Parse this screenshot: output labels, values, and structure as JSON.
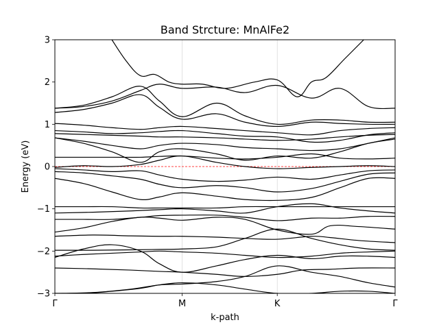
{
  "chart_data": {
    "type": "line",
    "title": "Band Strcture: MnAlFe2",
    "xlabel": "k-path",
    "ylabel": "Energy (eV)",
    "ylim": [
      -3,
      3
    ],
    "xlim": [
      0,
      3.58
    ],
    "xticks": [
      {
        "label": "Γ",
        "x": 0
      },
      {
        "label": "M",
        "x": 1.34
      },
      {
        "label": "K",
        "x": 2.34
      },
      {
        "label": "Γ",
        "x": 3.58
      }
    ],
    "yticks": [
      -3,
      -2,
      -1,
      0,
      1,
      2,
      3
    ],
    "vertical_grid_at_ticks": true,
    "fermi_level": {
      "energy": 0,
      "style": "dashed",
      "color": "#ff0000"
    },
    "band_color": "#000000",
    "bands": [
      {
        "x": [
          0,
          0.3,
          0.6,
          0.9,
          1.1,
          1.34,
          1.7,
          2.0,
          2.34,
          2.7,
          3.0,
          3.3,
          3.58
        ],
        "y": [
          -3.0,
          -3.0,
          -2.95,
          -2.88,
          -2.8,
          -2.75,
          -2.8,
          -2.9,
          -3.0,
          -3.0,
          -2.95,
          -2.95,
          -3.0
        ]
      },
      {
        "x": [
          0,
          0.4,
          0.8,
          1.1,
          1.34,
          1.7,
          2.0,
          2.34,
          2.7,
          3.0,
          3.3,
          3.58
        ],
        "y": [
          -3.0,
          -2.98,
          -2.9,
          -2.8,
          -2.78,
          -2.72,
          -2.6,
          -2.35,
          -2.5,
          -2.6,
          -2.75,
          -2.85
        ]
      },
      {
        "x": [
          0,
          0.4,
          0.8,
          1.1,
          1.34,
          1.7,
          2.0,
          2.34,
          2.6,
          2.9,
          3.2,
          3.58
        ],
        "y": [
          -2.4,
          -2.42,
          -2.45,
          -2.48,
          -2.5,
          -2.55,
          -2.6,
          -2.55,
          -2.45,
          -2.43,
          -2.4,
          -2.4
        ]
      },
      {
        "x": [
          0,
          0.3,
          0.6,
          0.9,
          1.1,
          1.34,
          1.7,
          2.0,
          2.34,
          2.7,
          3.0,
          3.3,
          3.58
        ],
        "y": [
          -2.15,
          -1.95,
          -1.85,
          -2.0,
          -2.3,
          -2.5,
          -2.35,
          -2.2,
          -2.1,
          -2.18,
          -2.12,
          -2.12,
          -2.15
        ]
      },
      {
        "x": [
          0,
          0.3,
          0.6,
          0.9,
          1.1,
          1.34,
          1.7,
          2.0,
          2.34,
          2.7,
          3.0,
          3.3,
          3.58
        ],
        "y": [
          -2.12,
          -2.08,
          -2.05,
          -2.02,
          -2.0,
          -2.02,
          -2.05,
          -2.1,
          -2.15,
          -2.12,
          -2.05,
          -2.02,
          -2.0
        ]
      },
      {
        "x": [
          0,
          0.4,
          0.8,
          1.1,
          1.34,
          1.7,
          2.0,
          2.34,
          2.7,
          3.0,
          3.3,
          3.58
        ],
        "y": [
          -1.98,
          -1.98,
          -1.97,
          -1.96,
          -1.95,
          -1.9,
          -1.7,
          -1.48,
          -1.7,
          -1.85,
          -1.95,
          -1.98
        ]
      },
      {
        "x": [
          0,
          0.4,
          0.8,
          1.1,
          1.34,
          1.7,
          2.0,
          2.34,
          2.7,
          2.9,
          3.2,
          3.58
        ],
        "y": [
          -1.65,
          -1.62,
          -1.64,
          -1.65,
          -1.65,
          -1.67,
          -1.7,
          -1.72,
          -1.65,
          -1.68,
          -1.75,
          -1.8
        ]
      },
      {
        "x": [
          0,
          0.3,
          0.6,
          0.9,
          1.1,
          1.34,
          1.7,
          2.0,
          2.34,
          2.7,
          2.9,
          3.2,
          3.58
        ],
        "y": [
          -1.55,
          -1.45,
          -1.3,
          -1.2,
          -1.22,
          -1.27,
          -1.2,
          -1.25,
          -1.5,
          -1.6,
          -1.4,
          -1.42,
          -1.48
        ]
      },
      {
        "x": [
          0,
          0.3,
          0.6,
          0.9,
          1.1,
          1.34,
          1.7,
          2.0,
          2.34,
          2.7,
          3.0,
          3.3,
          3.58
        ],
        "y": [
          -1.25,
          -1.25,
          -1.25,
          -1.2,
          -1.16,
          -1.15,
          -1.15,
          -1.2,
          -1.28,
          -1.22,
          -1.22,
          -1.18,
          -1.18
        ]
      },
      {
        "x": [
          0,
          0.4,
          0.8,
          1.1,
          1.34,
          1.7,
          2.0,
          2.34,
          2.7,
          3.0,
          3.3,
          3.58
        ],
        "y": [
          -1.1,
          -1.08,
          -1.05,
          -1.02,
          -1.0,
          -1.05,
          -1.1,
          -0.95,
          -0.88,
          -0.98,
          -1.05,
          -1.1
        ]
      },
      {
        "x": [
          0,
          0.3,
          0.6,
          0.9,
          1.1,
          1.34,
          1.7,
          2.0,
          2.34,
          2.7,
          3.0,
          3.3,
          3.58
        ],
        "y": [
          -0.95,
          -0.95,
          -0.95,
          -0.98,
          -0.98,
          -0.98,
          -0.98,
          -0.95,
          -0.95,
          -0.95,
          -0.95,
          -0.95,
          -0.95
        ]
      },
      {
        "x": [
          0,
          0.3,
          0.6,
          0.9,
          1.1,
          1.34,
          1.7,
          2.0,
          2.34,
          2.7,
          3.0,
          3.3,
          3.58
        ],
        "y": [
          -0.28,
          -0.4,
          -0.6,
          -0.78,
          -0.72,
          -0.62,
          -0.7,
          -0.78,
          -0.8,
          -0.73,
          -0.5,
          -0.28,
          -0.28
        ]
      },
      {
        "x": [
          0,
          0.3,
          0.6,
          0.9,
          1.1,
          1.34,
          1.7,
          2.0,
          2.34,
          2.7,
          3.0,
          3.3,
          3.58
        ],
        "y": [
          -0.12,
          -0.15,
          -0.22,
          -0.3,
          -0.42,
          -0.5,
          -0.45,
          -0.5,
          -0.6,
          -0.52,
          -0.35,
          -0.18,
          -0.15
        ]
      },
      {
        "x": [
          0,
          0.3,
          0.6,
          0.9,
          1.1,
          1.34,
          1.7,
          2.0,
          2.34,
          2.7,
          3.0,
          3.3,
          3.58
        ],
        "y": [
          -0.05,
          -0.08,
          -0.12,
          -0.1,
          -0.2,
          -0.3,
          -0.35,
          -0.32,
          -0.25,
          -0.3,
          -0.2,
          -0.1,
          -0.08
        ]
      },
      {
        "x": [
          0,
          0.3,
          0.6,
          0.9,
          1.1,
          1.34,
          1.7,
          2.0,
          2.34,
          2.7,
          3.0,
          3.3,
          3.58
        ],
        "y": [
          -0.02,
          0.02,
          0.0,
          0.05,
          0.15,
          0.25,
          0.1,
          0.0,
          -0.05,
          -0.02,
          0.0,
          0.02,
          0.0
        ]
      },
      {
        "x": [
          0,
          0.3,
          0.6,
          0.9,
          1.1,
          1.34,
          1.7,
          2.0,
          2.34,
          2.7,
          3.0,
          3.3,
          3.58
        ],
        "y": [
          0.22,
          0.22,
          0.22,
          0.22,
          0.24,
          0.25,
          0.2,
          0.18,
          0.22,
          0.3,
          0.2,
          0.18,
          0.2
        ]
      },
      {
        "x": [
          0,
          0.3,
          0.6,
          0.9,
          1.1,
          1.34,
          1.7,
          2.0,
          2.34,
          2.7,
          3.0,
          3.3,
          3.58
        ],
        "y": [
          0.68,
          0.55,
          0.35,
          0.1,
          0.35,
          0.42,
          0.3,
          0.15,
          0.25,
          0.2,
          0.35,
          0.55,
          0.65
        ]
      },
      {
        "x": [
          0,
          0.3,
          0.6,
          0.9,
          1.1,
          1.34,
          1.7,
          2.0,
          2.34,
          2.7,
          3.0,
          3.3,
          3.58
        ],
        "y": [
          0.68,
          0.6,
          0.5,
          0.42,
          0.5,
          0.55,
          0.52,
          0.45,
          0.42,
          0.38,
          0.42,
          0.55,
          0.68
        ]
      },
      {
        "x": [
          0,
          0.3,
          0.6,
          0.9,
          1.1,
          1.34,
          1.7,
          2.0,
          2.34,
          2.7,
          3.0,
          3.3,
          3.58
        ],
        "y": [
          0.78,
          0.76,
          0.74,
          0.72,
          0.7,
          0.7,
          0.68,
          0.65,
          0.62,
          0.65,
          0.7,
          0.74,
          0.76
        ]
      },
      {
        "x": [
          0,
          0.3,
          0.6,
          0.9,
          1.1,
          1.34,
          1.7,
          2.0,
          2.34,
          2.7,
          3.0,
          3.3,
          3.58
        ],
        "y": [
          0.85,
          0.82,
          0.78,
          0.8,
          0.83,
          0.85,
          0.78,
          0.72,
          0.7,
          0.58,
          0.62,
          0.75,
          0.8
        ]
      },
      {
        "x": [
          0,
          0.3,
          0.6,
          0.9,
          1.1,
          1.34,
          1.7,
          2.0,
          2.34,
          2.7,
          3.0,
          3.3,
          3.58
        ],
        "y": [
          1.02,
          0.98,
          0.92,
          0.88,
          0.92,
          0.95,
          0.9,
          0.85,
          0.8,
          0.75,
          0.85,
          0.9,
          0.92
        ]
      },
      {
        "x": [
          0,
          0.3,
          0.6,
          0.9,
          1.1,
          1.34,
          1.7,
          2.0,
          2.34,
          2.7,
          3.0,
          3.3,
          3.58
        ],
        "y": [
          1.28,
          1.35,
          1.5,
          1.7,
          1.4,
          1.12,
          1.25,
          1.05,
          0.95,
          1.05,
          1.02,
          1.0,
          1.0
        ]
      },
      {
        "x": [
          0,
          0.3,
          0.6,
          0.9,
          1.1,
          1.34,
          1.7,
          2.0,
          2.34,
          2.7,
          3.0,
          3.3,
          3.58
        ],
        "y": [
          1.38,
          1.45,
          1.65,
          1.9,
          1.55,
          1.18,
          1.5,
          1.2,
          1.0,
          1.1,
          1.1,
          1.05,
          1.05
        ]
      },
      {
        "x": [
          0,
          0.3,
          0.6,
          0.9,
          1.1,
          1.34,
          1.7,
          2.0,
          2.34,
          2.7,
          3.0,
          3.3,
          3.58
        ],
        "y": [
          1.38,
          1.42,
          1.55,
          1.8,
          1.95,
          1.85,
          1.88,
          1.75,
          1.92,
          1.62,
          1.85,
          1.42,
          1.38
        ]
      },
      {
        "x": [
          0.6,
          0.75,
          0.9,
          1.05,
          1.2,
          1.34,
          1.55,
          1.8,
          2.1,
          2.34,
          2.55,
          2.7,
          2.85,
          3.05,
          3.25
        ],
        "y": [
          3.0,
          2.5,
          2.15,
          2.18,
          2.0,
          1.95,
          1.95,
          1.85,
          2.0,
          2.05,
          1.65,
          2.0,
          2.1,
          2.55,
          3.0
        ]
      }
    ]
  }
}
